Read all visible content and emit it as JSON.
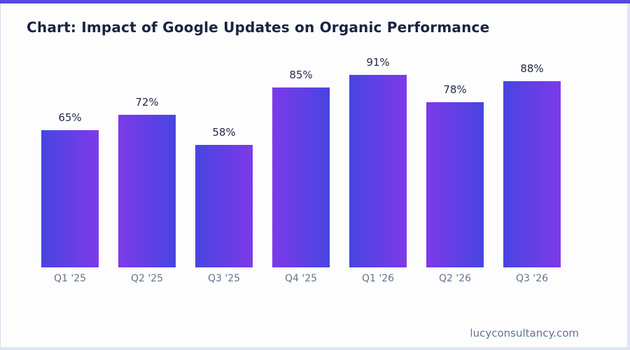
{
  "page": {
    "title": "Chart: Impact of Google Updates on Organic Performance",
    "footer": "lucyconsultancy.com"
  },
  "colors": {
    "accent_bar": "#5747e2",
    "background": "#fdfdfe",
    "title_text": "#1b2440",
    "value_label_text": "#222b47",
    "tick_label_text": "#64748b",
    "footer_text": "#64748b",
    "bar_gradient_blue": "#4845e1",
    "bar_gradient_violet": "#7d3ae9",
    "bottom_edge_strip": "#dee4f0",
    "right_edge_strip": "#e3e2f7"
  },
  "chart_data": {
    "type": "bar",
    "title": "Chart: Impact of Google Updates on Organic Performance",
    "categories": [
      "Q1 '25",
      "Q2 '25",
      "Q3 '25",
      "Q4 '25",
      "Q1 '26",
      "Q2 '26",
      "Q3 '26"
    ],
    "values": [
      65,
      72,
      58,
      85,
      91,
      78,
      88
    ],
    "value_labels": [
      "65%",
      "72%",
      "58%",
      "85%",
      "91%",
      "78%",
      "88%"
    ],
    "unit": "%",
    "ylabel": "",
    "xlabel": "",
    "ylim": [
      0,
      100
    ],
    "grid": false,
    "legend": null,
    "bar_gradient_alternates_direction": true,
    "watermark": "lucyconsultancy.com"
  }
}
